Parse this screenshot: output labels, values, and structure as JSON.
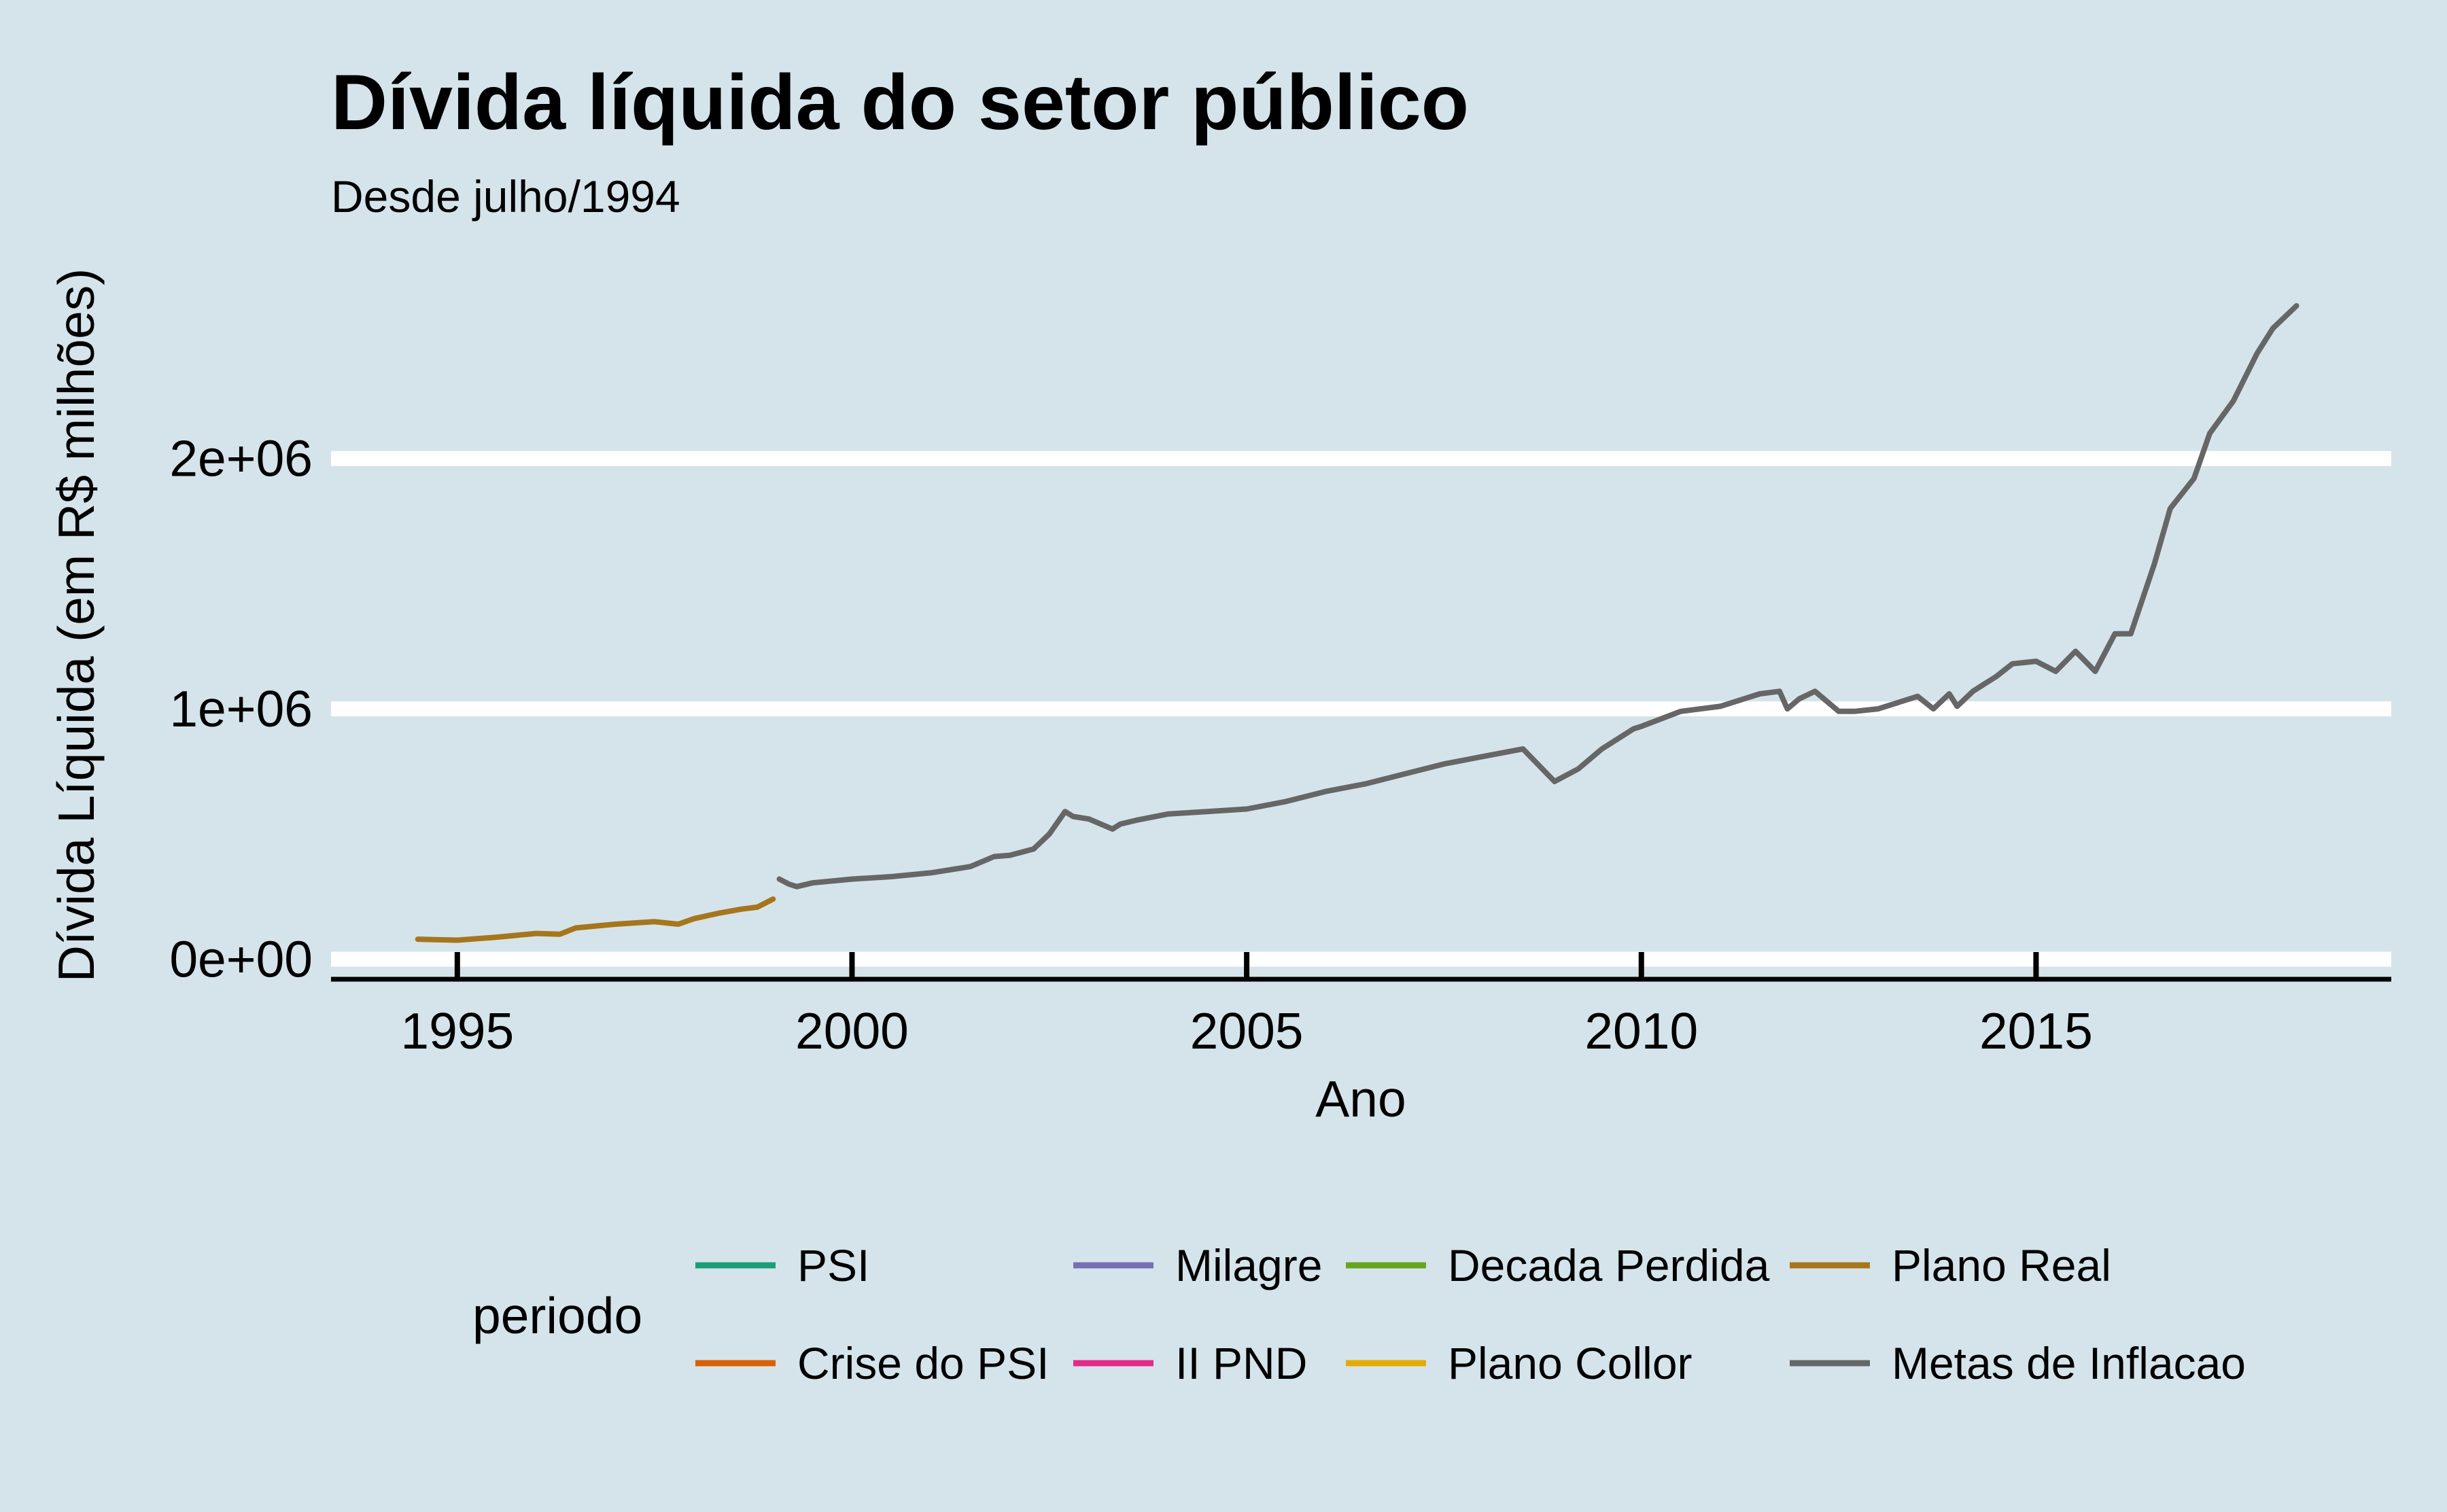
{
  "chart_data": {
    "type": "line",
    "title": "Dívida líquida do setor público",
    "subtitle": "Desde julho/1994",
    "xlabel": "Ano",
    "ylabel": "Dívida Líquida (em R$ milhões)",
    "x_ticks": [
      1995,
      2000,
      2005,
      2010,
      2015
    ],
    "x_tick_labels": [
      "1995",
      "2000",
      "2005",
      "2010",
      "2015"
    ],
    "y_ticks": [
      0,
      1000000,
      2000000
    ],
    "y_tick_labels": [
      "0e+00",
      "1e+06",
      "2e+06"
    ],
    "xlim": [
      1993.4,
      2019.5
    ],
    "ylim": [
      -80000,
      2800000
    ],
    "grid": "horizontal major lines only",
    "legend": {
      "title": "periodo",
      "position": "bottom",
      "entries": [
        {
          "label": "PSI",
          "color": "#1b9e77"
        },
        {
          "label": "Crise do PSI",
          "color": "#d95f02"
        },
        {
          "label": "Milagre",
          "color": "#7570b3"
        },
        {
          "label": "II PND",
          "color": "#e7298a"
        },
        {
          "label": "Decada Perdida",
          "color": "#66a61e"
        },
        {
          "label": "Plano Collor",
          "color": "#e6ab02"
        },
        {
          "label": "Plano Real",
          "color": "#a6761d"
        },
        {
          "label": "Metas de Inflacao",
          "color": "#666666"
        }
      ]
    },
    "series": [
      {
        "name": "Plano Real",
        "color": "#a6761d",
        "x": [
          1994.5,
          1995.0,
          1995.5,
          1996.0,
          1996.3,
          1996.5,
          1997.0,
          1997.5,
          1997.8,
          1998.0,
          1998.3,
          1998.6,
          1998.8,
          1999.0
        ],
        "y": [
          80000,
          76000,
          88000,
          103000,
          100000,
          125000,
          140000,
          150000,
          140000,
          162000,
          183000,
          200000,
          208000,
          240000
        ]
      },
      {
        "name": "Metas de Inflacao",
        "color": "#666666",
        "x": [
          1999.08,
          1999.2,
          1999.3,
          1999.5,
          2000.0,
          2000.5,
          2001.0,
          2001.5,
          2001.8,
          2002.0,
          2002.3,
          2002.5,
          2002.7,
          2002.8,
          2003.0,
          2003.3,
          2003.4,
          2003.6,
          2004.0,
          2004.5,
          2005.0,
          2005.5,
          2006.0,
          2006.5,
          2007.0,
          2007.5,
          2008.0,
          2008.5,
          2008.9,
          2009.2,
          2009.5,
          2009.9,
          2010.0,
          2010.5,
          2011.0,
          2011.5,
          2011.75,
          2011.85,
          2012.0,
          2012.2,
          2012.5,
          2012.7,
          2013.0,
          2013.5,
          2013.7,
          2013.9,
          2014.0,
          2014.2,
          2014.5,
          2014.7,
          2015.0,
          2015.25,
          2015.5,
          2015.75,
          2016.0,
          2016.2,
          2016.5,
          2016.7,
          2017.0,
          2017.2,
          2017.5,
          2017.8,
          2018.0,
          2018.3
        ],
        "y": [
          320000,
          300000,
          290000,
          305000,
          320000,
          330000,
          345000,
          370000,
          410000,
          415000,
          440000,
          500000,
          590000,
          570000,
          560000,
          520000,
          540000,
          555000,
          580000,
          590000,
          600000,
          630000,
          670000,
          700000,
          740000,
          780000,
          810000,
          840000,
          710000,
          760000,
          840000,
          920000,
          930000,
          990000,
          1010000,
          1060000,
          1070000,
          1000000,
          1040000,
          1070000,
          990000,
          990000,
          1000000,
          1050000,
          1000000,
          1060000,
          1010000,
          1070000,
          1130000,
          1180000,
          1190000,
          1150000,
          1230000,
          1150000,
          1300000,
          1300000,
          1580000,
          1800000,
          1920000,
          2100000,
          2230000,
          2420000,
          2520000,
          2610000
        ]
      }
    ]
  }
}
